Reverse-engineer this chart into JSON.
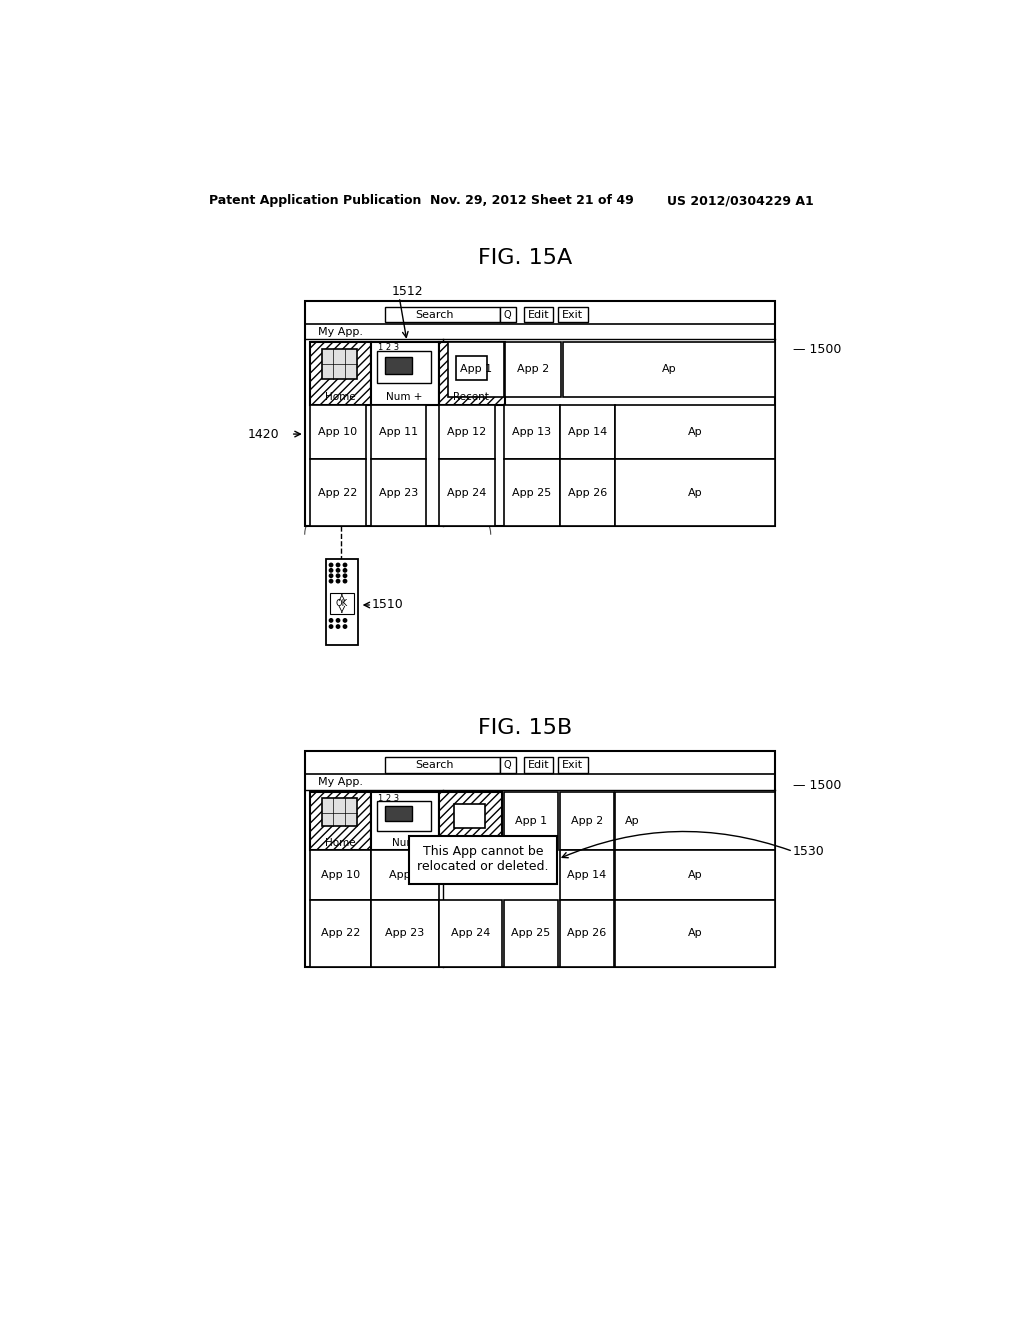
{
  "background_color": "#ffffff",
  "header_text": "Patent Application Publication",
  "header_date": "Nov. 29, 2012",
  "header_sheet": "Sheet 21 of 49",
  "header_patent": "US 2012/0304229 A1",
  "fig15a_title": "FIG. 15A",
  "fig15b_title": "FIG. 15B",
  "label_1500": "1500",
  "label_1510": "1510",
  "label_1512": "1512",
  "label_1420": "1420",
  "label_1530": "1530"
}
